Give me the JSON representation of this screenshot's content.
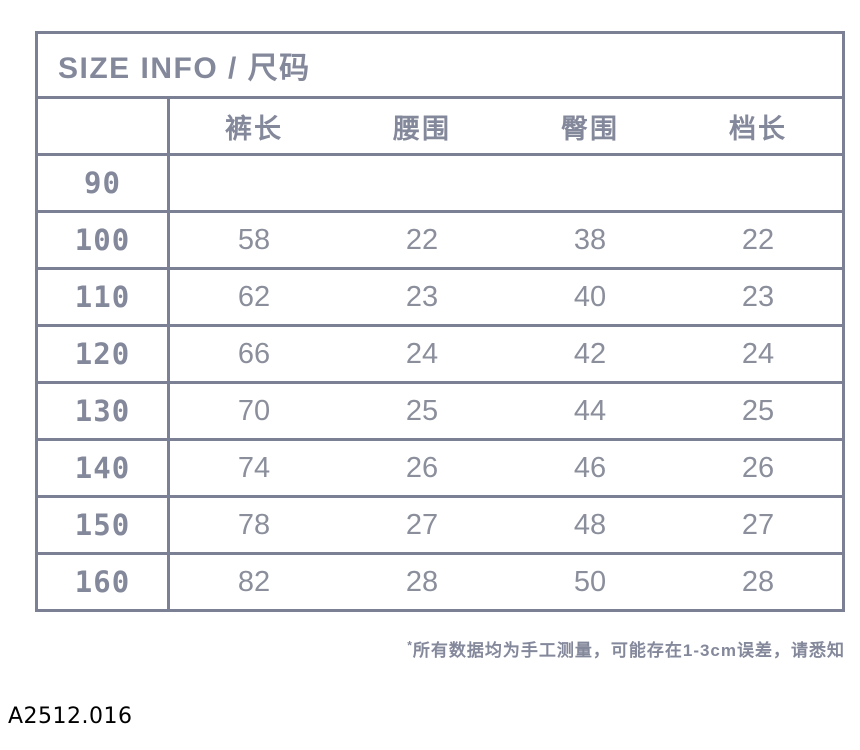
{
  "title": "SIZE INFO / 尺码",
  "table": {
    "columns": [
      "裤长",
      "腰围",
      "臀围",
      "档长"
    ],
    "rows": [
      {
        "size": "90",
        "values": [
          "",
          "",
          "",
          ""
        ]
      },
      {
        "size": "100",
        "values": [
          "58",
          "22",
          "38",
          "22"
        ]
      },
      {
        "size": "110",
        "values": [
          "62",
          "23",
          "40",
          "23"
        ]
      },
      {
        "size": "120",
        "values": [
          "66",
          "24",
          "42",
          "24"
        ]
      },
      {
        "size": "130",
        "values": [
          "70",
          "25",
          "44",
          "25"
        ]
      },
      {
        "size": "140",
        "values": [
          "74",
          "26",
          "46",
          "26"
        ]
      },
      {
        "size": "150",
        "values": [
          "78",
          "27",
          "48",
          "27"
        ]
      },
      {
        "size": "160",
        "values": [
          "82",
          "28",
          "50",
          "28"
        ]
      }
    ]
  },
  "footnote": {
    "mark": "*",
    "text": "所有数据均为手工测量，可能存在1-3cm误差，请悉知"
  },
  "sku": "A2512.016",
  "colors": {
    "line": "#7b8095",
    "text": "#84889b",
    "numbers": "#8b8f9c",
    "sku_text": "#000000",
    "background": "#ffffff"
  }
}
